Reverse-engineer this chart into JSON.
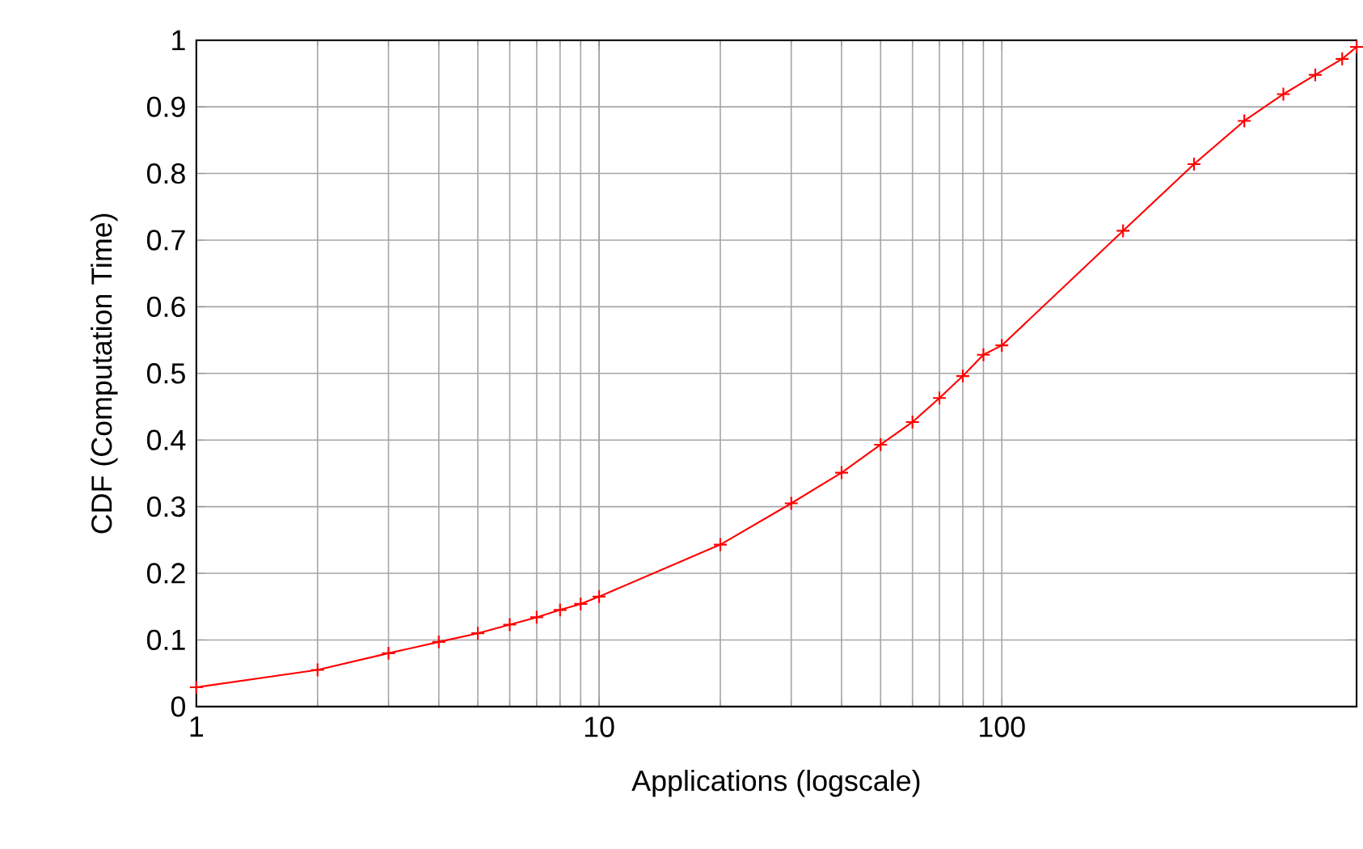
{
  "chart_data": {
    "type": "line",
    "xlabel": "Applications (logscale)",
    "ylabel": "CDF (Computation Time)",
    "log": "x",
    "grid": true,
    "marker": "cross",
    "line_style": "solid",
    "xlim": [
      1,
      760
    ],
    "xticks": [
      1,
      10,
      100
    ],
    "ylim": [
      0,
      1
    ],
    "yticks": [
      0,
      0.1,
      0.2,
      0.3,
      0.4,
      0.5,
      0.6,
      0.7,
      0.8,
      0.9,
      1
    ],
    "x": [
      1,
      2,
      3,
      4,
      5,
      6,
      7,
      8,
      9,
      10,
      20,
      30,
      40,
      50,
      60,
      70,
      80,
      90,
      100,
      200,
      300,
      400,
      500,
      600,
      700,
      760
    ],
    "series": [
      {
        "color": "#ff0000",
        "values": [
          0.029,
          0.055,
          0.08,
          0.097,
          0.11,
          0.123,
          0.134,
          0.145,
          0.154,
          0.165,
          0.243,
          0.305,
          0.351,
          0.393,
          0.427,
          0.463,
          0.496,
          0.528,
          0.542,
          0.714,
          0.814,
          0.879,
          0.919,
          0.948,
          0.972,
          0.99
        ]
      }
    ]
  }
}
